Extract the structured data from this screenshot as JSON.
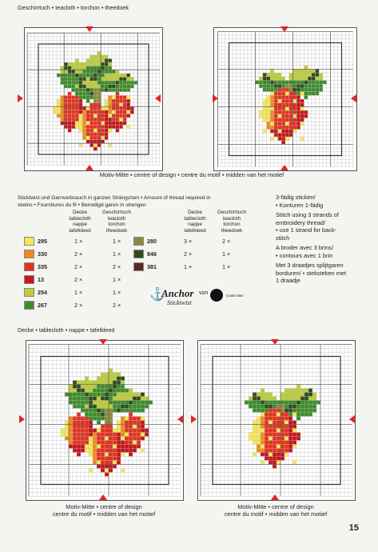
{
  "top": {
    "header": "Geschirrtuch • teacloth • torchon • theedoek",
    "caption": "Motiv-Mitte • centre of design • centre du motif • midden van het motief"
  },
  "thread": {
    "intro_line1": "Sticktwist und Garnverbrauch in ganzen Strängchen • Amount of thread required in",
    "intro_line2": "skeins  • Fournitures du fil • Benodigd garen in strengen",
    "columns": {
      "decke": "Decke\ntablecloth\nnappe\ntafelkleed",
      "geschirrtuch": "Geschirrtuch\nteacloth\ntorchon\ntheedoek"
    },
    "rows_left": [
      {
        "code": "295",
        "color": "#f5e85a",
        "decke": "1 ×",
        "tuch": "1 ×"
      },
      {
        "code": "330",
        "color": "#f08a1c",
        "decke": "2 ×",
        "tuch": "1 ×"
      },
      {
        "code": "335",
        "color": "#e5311f",
        "decke": "2 ×",
        "tuch": "2 ×"
      },
      {
        "code": "13",
        "color": "#c4161c",
        "decke": "2 ×",
        "tuch": "1 ×"
      },
      {
        "code": "254",
        "color": "#bccc3c",
        "decke": "1 ×",
        "tuch": "1 ×"
      },
      {
        "code": "267",
        "color": "#3d8c2a",
        "decke": "2 ×",
        "tuch": "2 ×"
      }
    ],
    "rows_right": [
      {
        "code": "280",
        "color": "#8c8a3a",
        "decke": "3 ×",
        "tuch": "2 ×"
      },
      {
        "code": "846",
        "color": "#2e4d1e",
        "decke": "2 ×",
        "tuch": "1 ×"
      },
      {
        "code": "381",
        "color": "#5a2a22",
        "decke": "1 ×",
        "tuch": "1 ×"
      }
    ]
  },
  "notes": [
    "3-fädig sticken/",
    "• Konturen 1-fädig",
    "Stitch using 3 strands of",
    "embroidery thread/",
    "• use 1 strand for back-",
    "stitch",
    "A broder avec 3 brins/",
    "• contours avec 1 brin",
    "Met 3 draadjes splijtgaren",
    "borduren/ • steksteken met",
    "1 draadje"
  ],
  "brand": {
    "name": "Anchor",
    "von": "von",
    "sub": "Sticktwist",
    "coats": "Coats Mez"
  },
  "bottom": {
    "header": "Decke • tablecloth • nappe • tafelkleed",
    "caption_line1": "Motiv-Mitte • centre of design",
    "caption_line2": "centre du motif • midden van het motief"
  },
  "page_number": "15"
}
